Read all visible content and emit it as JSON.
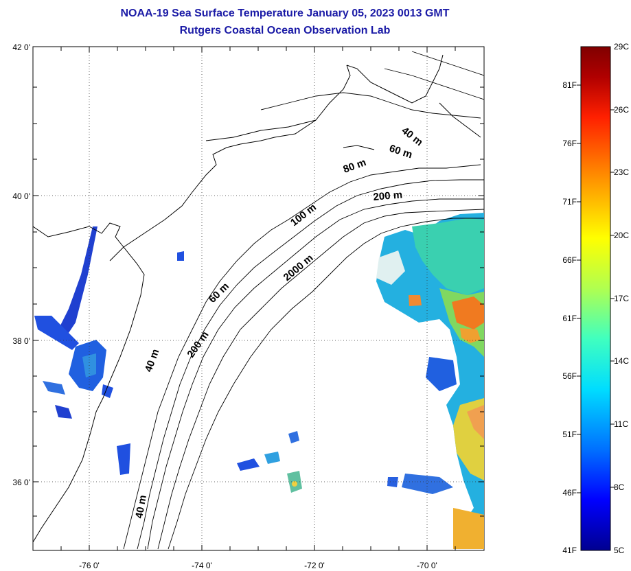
{
  "title": "NOAA-19 Sea Surface Temperature January 05, 2023 0013 GMT",
  "subtitle": "Rutgers Coastal Ocean Observation Lab",
  "map": {
    "lat_labels": [
      {
        "value": 42,
        "label": "42 0'"
      },
      {
        "value": 40,
        "label": "40 0'"
      },
      {
        "value": 38,
        "label": "38 0'"
      },
      {
        "value": 36,
        "label": "36 0'"
      }
    ],
    "lon_labels": [
      {
        "value": -76,
        "label": "-76 0'"
      },
      {
        "value": -74,
        "label": "-74 0'"
      },
      {
        "value": -72,
        "label": "-72 0'"
      },
      {
        "value": -70,
        "label": "-70 0'"
      }
    ],
    "gridlines": true,
    "contour_labels": [
      "40 m",
      "60 m",
      "80 m",
      "200 m",
      "100 m",
      "2000 m",
      "60 m",
      "200 m",
      "40 m",
      "40 m"
    ]
  },
  "colorbar": {
    "celsius": [
      "29C",
      "26C",
      "23C",
      "20C",
      "17C",
      "14C",
      "11C",
      "8C",
      "5C"
    ],
    "fahrenheit": [
      "81F",
      "76F",
      "71F",
      "66F",
      "61F",
      "56F",
      "51F",
      "46F",
      "41F"
    ],
    "colors": [
      "#000090",
      "#0000ff",
      "#0070ff",
      "#00ddff",
      "#40ffbf",
      "#b0ff50",
      "#ffff00",
      "#ff9000",
      "#ff2000",
      "#b00000",
      "#800000"
    ]
  },
  "sst_colors": {
    "cool": "#2050e0",
    "cyan": "#20c0e0",
    "green": "#80e060",
    "yellow": "#f0d020",
    "orange": "#f08020"
  }
}
